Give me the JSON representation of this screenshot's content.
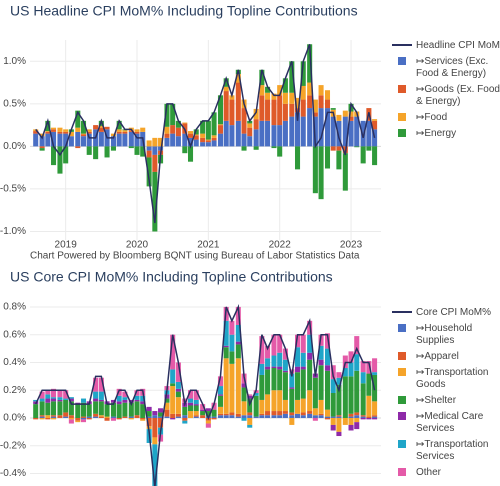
{
  "chart_data": [
    {
      "type": "bar",
      "barmode": "relative",
      "title": "US Headline CPI MoM% Including Topline Contributions",
      "annotation": "Chart Powered by Bloomberg BQNT using Bureau of Labor Statistics Data",
      "x": [
        2018.58,
        2018.67,
        2018.75,
        2018.83,
        2018.92,
        2019,
        2019.08,
        2019.17,
        2019.25,
        2019.33,
        2019.42,
        2019.5,
        2019.58,
        2019.67,
        2019.75,
        2019.83,
        2019.92,
        2020,
        2020.08,
        2020.17,
        2020.25,
        2020.33,
        2020.42,
        2020.5,
        2020.58,
        2020.67,
        2020.75,
        2020.83,
        2020.92,
        2021,
        2021.08,
        2021.17,
        2021.25,
        2021.33,
        2021.42,
        2021.5,
        2021.58,
        2021.67,
        2021.75,
        2021.83,
        2021.92,
        2022,
        2022.08,
        2022.17,
        2022.25,
        2022.33,
        2022.42,
        2022.5,
        2022.58,
        2022.67,
        2022.75,
        2022.83,
        2022.92,
        2023,
        2023.08,
        2023.17,
        2023.25,
        2023.33
      ],
      "xlim": [
        2018.5,
        2023.42
      ],
      "xticks": [
        2019,
        2020,
        2021,
        2022,
        2023
      ],
      "ylim": [
        -1.1,
        1.25
      ],
      "yticks": [
        {
          "value": 1.0,
          "label": "1.0%"
        },
        {
          "value": 0.5,
          "label": "0.5%"
        },
        {
          "value": 0,
          "label": "0.0%"
        },
        {
          "value": -0.5,
          "label": "-0.5%"
        },
        {
          "value": -1.0,
          "label": "-1.0%"
        }
      ],
      "grid": true,
      "series": [
        {
          "name": "Headline CPI MoM%",
          "type": "line",
          "color": "#2a3060",
          "values": [
            0.2,
            0.1,
            0.3,
            0.0,
            -0.1,
            0.0,
            0.2,
            0.4,
            0.3,
            0.1,
            0.1,
            0.3,
            0.1,
            0.1,
            0.3,
            0.2,
            0.2,
            0.1,
            0.1,
            -0.4,
            -0.9,
            -0.1,
            0.5,
            0.5,
            0.3,
            0.2,
            0.0,
            0.2,
            0.3,
            0.3,
            0.4,
            0.6,
            0.8,
            0.6,
            0.9,
            0.5,
            0.3,
            0.4,
            0.9,
            0.7,
            0.6,
            0.6,
            0.8,
            1.0,
            0.3,
            1.0,
            1.2,
            0.0,
            0.1,
            0.4,
            0.4,
            0.1,
            -0.1,
            0.5,
            0.4,
            0.1,
            0.4,
            0.1
          ]
        },
        {
          "name": "↦Services (Exc. Food & Energy)",
          "color": "#4a6fc4",
          "values": [
            0.15,
            0.12,
            0.15,
            0.17,
            0.15,
            0.15,
            0.12,
            0.17,
            0.12,
            0.15,
            0.2,
            0.17,
            0.2,
            0.12,
            0.15,
            0.15,
            0.17,
            0.15,
            0.17,
            -0.05,
            -0.1,
            -0.05,
            0.1,
            0.15,
            0.12,
            0.15,
            0.1,
            0.08,
            0.05,
            0.05,
            0.07,
            0.15,
            0.3,
            0.25,
            0.3,
            0.15,
            0.12,
            0.2,
            0.3,
            0.3,
            0.25,
            0.25,
            0.3,
            0.35,
            0.4,
            0.35,
            0.45,
            0.35,
            0.45,
            0.45,
            0.35,
            0.3,
            0.35,
            0.3,
            0.35,
            0.3,
            0.3,
            0.2
          ]
        },
        {
          "name": "↦Goods (Ex. Food & Energy)",
          "color": "#df5a2a",
          "values": [
            0.03,
            -0.02,
            0.02,
            0.03,
            0.02,
            0.02,
            0.0,
            -0.02,
            0.02,
            0.02,
            0.05,
            0.05,
            0.03,
            0.0,
            0.02,
            0.02,
            0.02,
            0.02,
            0.0,
            -0.08,
            -0.2,
            -0.05,
            0.05,
            0.1,
            0.1,
            0.12,
            0.05,
            0.05,
            0.05,
            0.02,
            0.03,
            0.1,
            0.35,
            0.3,
            0.45,
            0.3,
            0.1,
            0.12,
            0.3,
            0.25,
            0.3,
            0.35,
            0.2,
            0.15,
            0.05,
            0.2,
            0.15,
            0.05,
            0.15,
            0.1,
            -0.05,
            -0.05,
            -0.08,
            0.05,
            0.0,
            0.0,
            0.15,
            0.1
          ]
        },
        {
          "name": "↦Food",
          "color": "#f5a42a",
          "values": [
            0.02,
            0.03,
            0.01,
            0.02,
            0.05,
            0.03,
            0.05,
            0.05,
            0.01,
            0.03,
            0.0,
            0.02,
            0.0,
            0.03,
            0.03,
            0.02,
            0.03,
            0.03,
            0.05,
            0.07,
            0.1,
            0.1,
            0.08,
            0.0,
            0.0,
            0.01,
            0.03,
            0.01,
            0.05,
            0.01,
            0.03,
            0.01,
            0.05,
            0.05,
            0.1,
            0.1,
            0.05,
            0.12,
            0.12,
            0.08,
            0.07,
            0.12,
            0.13,
            0.13,
            0.12,
            0.16,
            0.15,
            0.15,
            0.12,
            0.11,
            0.08,
            0.07,
            0.07,
            0.06,
            0.06,
            0.0,
            0.0,
            0.02
          ]
        },
        {
          "name": "↦Energy",
          "color": "#2f9a3a",
          "values": [
            0.0,
            -0.03,
            0.12,
            -0.22,
            -0.32,
            -0.2,
            0.03,
            0.2,
            0.15,
            -0.1,
            -0.15,
            0.06,
            -0.13,
            -0.05,
            0.1,
            0.01,
            -0.02,
            -0.1,
            -0.12,
            -0.34,
            -0.7,
            -0.1,
            0.27,
            0.25,
            0.08,
            -0.08,
            -0.18,
            0.06,
            0.15,
            0.22,
            0.27,
            0.34,
            0.1,
            0.0,
            0.05,
            -0.05,
            0.03,
            -0.04,
            0.18,
            0.07,
            -0.02,
            -0.12,
            0.17,
            0.37,
            -0.27,
            0.29,
            0.45,
            -0.55,
            -0.62,
            -0.26,
            0.02,
            -0.22,
            -0.44,
            0.09,
            -0.01,
            -0.2,
            -0.05,
            -0.22
          ]
        }
      ]
    },
    {
      "type": "bar",
      "barmode": "relative",
      "title": "US Core CPI MoM% Including Topline Contributions",
      "x": [
        2018.58,
        2018.67,
        2018.75,
        2018.83,
        2018.92,
        2019,
        2019.08,
        2019.17,
        2019.25,
        2019.33,
        2019.42,
        2019.5,
        2019.58,
        2019.67,
        2019.75,
        2019.83,
        2019.92,
        2020,
        2020.08,
        2020.17,
        2020.25,
        2020.33,
        2020.42,
        2020.5,
        2020.58,
        2020.67,
        2020.75,
        2020.83,
        2020.92,
        2021,
        2021.08,
        2021.17,
        2021.25,
        2021.33,
        2021.42,
        2021.5,
        2021.58,
        2021.67,
        2021.75,
        2021.83,
        2021.92,
        2022,
        2022.08,
        2022.17,
        2022.25,
        2022.33,
        2022.42,
        2022.5,
        2022.58,
        2022.67,
        2022.75,
        2022.83,
        2022.92,
        2023,
        2023.08,
        2023.17,
        2023.25,
        2023.33
      ],
      "xlim": [
        2018.5,
        2023.42
      ],
      "ylim": [
        -0.49,
        0.85
      ],
      "yticks": [
        {
          "value": 0.8,
          "label": "0.8%"
        },
        {
          "value": 0.6,
          "label": "0.6%"
        },
        {
          "value": 0.4,
          "label": "0.4%"
        },
        {
          "value": 0.2,
          "label": "0.2%"
        },
        {
          "value": 0,
          "label": "0.0%"
        },
        {
          "value": -0.2,
          "label": "-0.2%"
        },
        {
          "value": -0.4,
          "label": "-0.4%"
        }
      ],
      "grid": true,
      "series": [
        {
          "name": "Core CPI MoM%",
          "type": "line",
          "color": "#2a3060",
          "values": [
            0.1,
            0.2,
            0.2,
            0.2,
            0.2,
            0.2,
            0.1,
            0.1,
            0.1,
            0.1,
            0.3,
            0.3,
            0.1,
            0.1,
            0.2,
            0.2,
            0.1,
            0.2,
            0.2,
            -0.1,
            -0.5,
            -0.1,
            0.2,
            0.6,
            0.4,
            0.1,
            0.2,
            0.2,
            0.1,
            0.0,
            0.1,
            0.3,
            0.8,
            0.7,
            0.8,
            0.3,
            0.1,
            0.2,
            0.6,
            0.5,
            0.6,
            0.6,
            0.5,
            0.3,
            0.6,
            0.6,
            0.7,
            0.3,
            0.6,
            0.6,
            0.3,
            0.2,
            0.4,
            0.4,
            0.5,
            0.4,
            0.4,
            0.2
          ]
        },
        {
          "name": "↦Household Supplies",
          "color": "#4a6fc4",
          "values": [
            0.0,
            0.01,
            0.0,
            0.01,
            0.0,
            0.01,
            0.0,
            0.0,
            -0.01,
            0.01,
            0.01,
            0.0,
            0.0,
            0.01,
            0.0,
            0.0,
            0.01,
            0.0,
            0.0,
            0.01,
            0.02,
            0.01,
            0.01,
            0.0,
            0.01,
            0.02,
            0.0,
            0.01,
            0.0,
            0.01,
            0.01,
            0.02,
            0.02,
            0.02,
            0.01,
            0.02,
            0.02,
            0.01,
            0.02,
            0.02,
            0.02,
            0.02,
            0.03,
            0.02,
            0.03,
            0.02,
            0.03,
            0.02,
            0.02,
            0.01,
            0.01,
            0.01,
            0.0,
            0.01,
            0.02,
            0.01,
            0.0,
            0.01
          ]
        },
        {
          "name": "↦Apparel",
          "color": "#df5a2a",
          "values": [
            -0.01,
            0.01,
            -0.01,
            0.01,
            0.02,
            0.03,
            0.02,
            -0.02,
            0.01,
            -0.01,
            0.02,
            0.01,
            -0.02,
            0.0,
            -0.01,
            0.01,
            0.0,
            0.02,
            -0.01,
            -0.06,
            -0.14,
            -0.07,
            0.05,
            0.03,
            0.02,
            -0.02,
            0.0,
            0.01,
            0.02,
            -0.02,
            -0.01,
            0.01,
            0.01,
            0.02,
            0.02,
            0.0,
            0.02,
            0.0,
            0.01,
            0.03,
            0.03,
            0.03,
            0.02,
            0.02,
            0.0,
            0.02,
            0.02,
            0.0,
            0.01,
            -0.01,
            0.0,
            0.01,
            0.0,
            0.02,
            0.02,
            0.01,
            0.01,
            0.01
          ]
        },
        {
          "name": "↦Transportation Goods",
          "color": "#f5a42a",
          "values": [
            0.0,
            -0.01,
            0.02,
            -0.01,
            0.0,
            0.0,
            -0.01,
            -0.01,
            0.0,
            0.0,
            0.0,
            0.01,
            0.01,
            0.0,
            0.0,
            0.0,
            -0.01,
            0.0,
            -0.01,
            -0.02,
            -0.05,
            0.0,
            0.05,
            0.2,
            0.12,
            0.0,
            0.05,
            0.03,
            0.0,
            -0.02,
            0.0,
            0.05,
            0.4,
            0.35,
            0.4,
            0.1,
            -0.05,
            0.0,
            0.1,
            0.12,
            0.15,
            0.15,
            0.08,
            -0.05,
            0.1,
            0.1,
            0.15,
            0.05,
            0.1,
            0.05,
            -0.05,
            -0.1,
            -0.05,
            -0.05,
            -0.03,
            0.0,
            0.15,
            0.1
          ]
        },
        {
          "name": "↦Shelter",
          "color": "#2f9a3a",
          "values": [
            0.1,
            0.1,
            0.09,
            0.1,
            0.1,
            0.09,
            0.1,
            0.1,
            0.1,
            0.09,
            0.09,
            0.1,
            0.09,
            0.1,
            0.1,
            0.1,
            0.1,
            0.1,
            0.1,
            0.04,
            0.0,
            0.03,
            0.03,
            0.02,
            0.04,
            0.06,
            0.04,
            0.04,
            0.03,
            0.04,
            0.05,
            0.08,
            0.08,
            0.09,
            0.1,
            0.1,
            0.1,
            0.15,
            0.18,
            0.18,
            0.16,
            0.15,
            0.2,
            0.17,
            0.2,
            0.21,
            0.22,
            0.22,
            0.25,
            0.28,
            0.17,
            0.22,
            0.3,
            0.27,
            0.3,
            0.23,
            0.16,
            0.19
          ]
        },
        {
          "name": "↦Medical Care Services",
          "color": "#8e2aa8",
          "values": [
            0.02,
            0.0,
            0.03,
            0.02,
            0.01,
            0.0,
            0.02,
            0.01,
            0.0,
            0.02,
            0.02,
            0.01,
            0.02,
            0.02,
            0.02,
            0.02,
            0.02,
            0.01,
            0.02,
            0.03,
            0.03,
            0.03,
            0.03,
            -0.01,
            0.02,
            0.03,
            0.02,
            0.01,
            0.01,
            0.02,
            0.0,
            0.01,
            0.01,
            0.0,
            0.02,
            0.03,
            0.02,
            0.0,
            0.0,
            0.02,
            0.01,
            0.02,
            0.01,
            0.01,
            0.04,
            0.02,
            0.05,
            0.03,
            0.04,
            0.04,
            -0.04,
            -0.03,
            0.0,
            -0.04,
            -0.05,
            -0.01,
            -0.01,
            -0.01
          ]
        },
        {
          "name": "↦Transportation Services",
          "color": "#1fa5c8",
          "values": [
            0.01,
            0.02,
            0.03,
            0.01,
            0.02,
            0.01,
            0.01,
            0.0,
            0.03,
            0.0,
            0.05,
            0.06,
            0.0,
            0.0,
            0.04,
            0.02,
            0.0,
            0.03,
            0.04,
            -0.1,
            -0.37,
            -0.05,
            0.03,
            0.1,
            0.05,
            -0.02,
            0.03,
            0.03,
            0.0,
            0.0,
            0.0,
            0.06,
            0.18,
            0.12,
            0.12,
            -0.02,
            -0.02,
            0.02,
            0.08,
            0.06,
            0.08,
            0.1,
            0.08,
            0.1,
            0.14,
            0.1,
            0.13,
            0.0,
            0.1,
            0.12,
            0.1,
            0.05,
            0.06,
            0.1,
            0.12,
            0.08,
            0.0,
            0.02
          ]
        },
        {
          "name": "Other",
          "color": "#e45aa8",
          "values": [
            0.0,
            0.05,
            0.03,
            0.06,
            0.05,
            0.06,
            -0.03,
            0.0,
            -0.02,
            0.0,
            0.1,
            0.1,
            0.0,
            -0.02,
            0.05,
            0.04,
            0.0,
            0.04,
            0.05,
            0.0,
            -0.02,
            -0.05,
            0.03,
            0.25,
            0.14,
            0.03,
            0.06,
            0.07,
            0.04,
            -0.03,
            0.05,
            0.07,
            0.1,
            0.1,
            0.13,
            0.07,
            0.01,
            0.02,
            0.2,
            0.09,
            0.15,
            0.13,
            0.08,
            0.03,
            0.09,
            0.13,
            0.1,
            -0.02,
            0.08,
            0.11,
            0.1,
            0.04,
            0.09,
            0.08,
            0.13,
            0.08,
            0.09,
            0.1
          ]
        }
      ]
    }
  ]
}
